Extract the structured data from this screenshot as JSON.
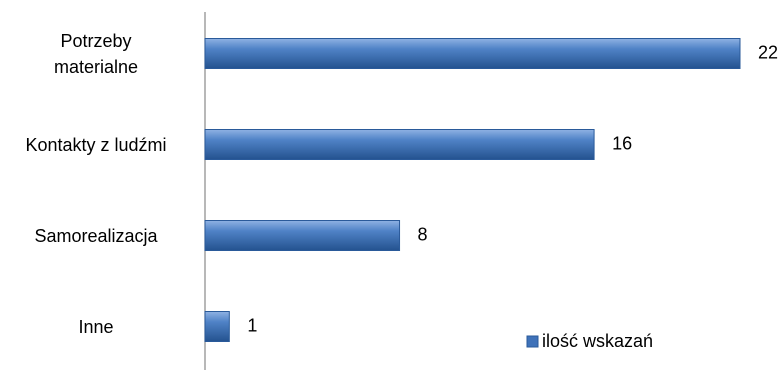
{
  "chart_data": {
    "type": "bar",
    "orientation": "horizontal",
    "categories": [
      "Potrzeby materialne",
      "Kontakty z ludźmi",
      "Samorealizacja",
      "Inne"
    ],
    "series": [
      {
        "name": "ilość wskazań",
        "color": "#3f72b9",
        "values": [
          22,
          16,
          8,
          1
        ]
      }
    ]
  }
}
